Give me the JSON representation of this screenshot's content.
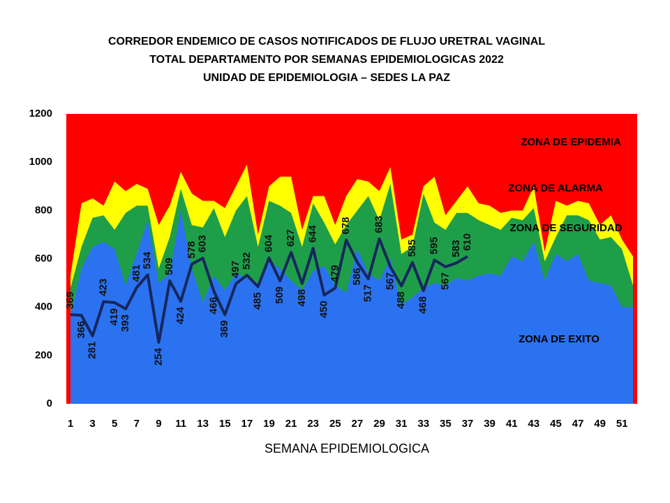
{
  "chart_data": {
    "type": "area",
    "title": [
      "CORREDOR ENDEMICO  DE CASOS NOTIFICADOS  DE FLUJO URETRAL VAGINAL",
      "TOTAL DEPARTAMENTO  POR SEMANAS EPIDEMIOLOGICAS  2022",
      "UNIDAD  DE EPIDEMIOLOGIA  – SEDES LA PAZ"
    ],
    "xlabel": "SEMANA EPIDEMIOLOGICA",
    "x": [
      1,
      2,
      3,
      4,
      5,
      6,
      7,
      8,
      9,
      10,
      11,
      12,
      13,
      14,
      15,
      16,
      17,
      18,
      19,
      20,
      21,
      22,
      23,
      24,
      25,
      26,
      27,
      28,
      29,
      30,
      31,
      32,
      33,
      34,
      35,
      36,
      37,
      38,
      39,
      40,
      41,
      42,
      43,
      44,
      45,
      46,
      47,
      48,
      49,
      50,
      51,
      52
    ],
    "xlim": [
      1,
      52
    ],
    "xticks": [
      1,
      3,
      5,
      7,
      9,
      11,
      13,
      15,
      17,
      19,
      21,
      23,
      25,
      27,
      29,
      31,
      33,
      35,
      37,
      39,
      41,
      43,
      45,
      47,
      49,
      51
    ],
    "ylim": [
      0,
      1200
    ],
    "yticks": [
      0,
      200,
      400,
      600,
      800,
      1000,
      1200
    ],
    "background": {
      "name": "ZONA DE EPIDEMIA",
      "color": "#ff0000"
    },
    "series": [
      {
        "name": "ZONA DE ALARMA",
        "color": "#ffff00",
        "values": [
          530,
          830,
          850,
          820,
          920,
          880,
          910,
          890,
          740,
          820,
          960,
          870,
          840,
          840,
          810,
          900,
          990,
          700,
          900,
          940,
          940,
          720,
          860,
          860,
          740,
          860,
          930,
          920,
          880,
          980,
          680,
          700,
          900,
          940,
          780,
          840,
          900,
          830,
          820,
          790,
          800,
          800,
          900,
          630,
          840,
          820,
          840,
          830,
          740,
          780,
          680,
          610
        ]
      },
      {
        "name": "ZONA DE  SEGURIDAD",
        "color": "#1f9e4a",
        "values": [
          480,
          650,
          770,
          780,
          720,
          790,
          820,
          820,
          560,
          690,
          890,
          740,
          730,
          810,
          690,
          800,
          860,
          650,
          840,
          820,
          790,
          650,
          830,
          750,
          660,
          740,
          800,
          860,
          760,
          910,
          620,
          650,
          870,
          750,
          720,
          790,
          790,
          760,
          740,
          720,
          770,
          760,
          810,
          590,
          690,
          780,
          780,
          760,
          680,
          690,
          640,
          490
        ]
      },
      {
        "name": "ZONA DE  EXITO",
        "color": "#2b72f0",
        "values": [
          360,
          560,
          650,
          670,
          640,
          490,
          620,
          760,
          500,
          540,
          800,
          560,
          420,
          530,
          470,
          540,
          520,
          500,
          590,
          560,
          510,
          470,
          550,
          570,
          490,
          460,
          640,
          540,
          510,
          600,
          410,
          440,
          480,
          500,
          490,
          520,
          510,
          530,
          540,
          530,
          610,
          590,
          670,
          510,
          620,
          590,
          620,
          510,
          500,
          490,
          400,
          400
        ]
      }
    ],
    "line": {
      "color": "#16275c",
      "values": [
        369,
        366,
        281,
        423,
        419,
        393,
        481,
        534,
        254,
        509,
        424,
        578,
        603,
        466,
        369,
        497,
        532,
        485,
        604,
        509,
        627,
        498,
        644,
        450,
        479,
        678,
        586,
        517,
        683,
        567,
        488,
        585,
        468,
        595,
        567,
        583,
        610
      ]
    }
  }
}
